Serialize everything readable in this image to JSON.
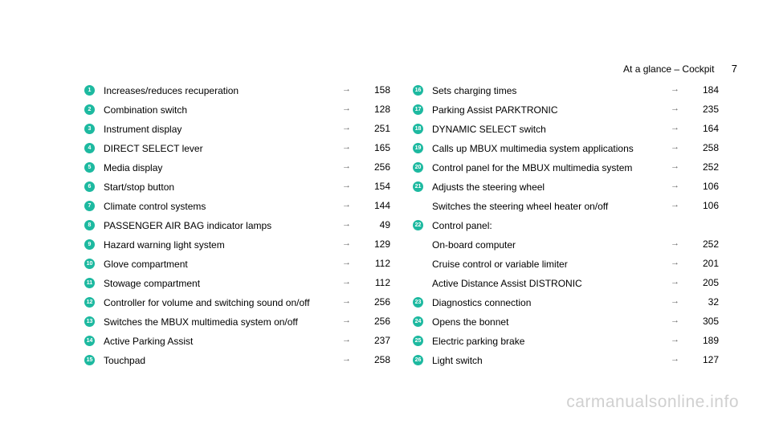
{
  "header": {
    "title": "At a glance – Cockpit",
    "page": "7"
  },
  "watermark": "carmanualsonline.info",
  "accent_color": "#1db9a0",
  "left_items": [
    {
      "n": "1",
      "label": "Increases/reduces recuperation",
      "page": "158"
    },
    {
      "n": "2",
      "label": "Combination switch",
      "page": "128"
    },
    {
      "n": "3",
      "label": "Instrument display",
      "page": "251"
    },
    {
      "n": "4",
      "label": "DIRECT SELECT lever",
      "page": "165"
    },
    {
      "n": "5",
      "label": "Media display",
      "page": "256"
    },
    {
      "n": "6",
      "label": "Start/stop button",
      "page": "154"
    },
    {
      "n": "7",
      "label": "Climate control systems",
      "page": "144"
    },
    {
      "n": "8",
      "label": "PASSENGER AIR BAG indicator lamps",
      "page": "49"
    },
    {
      "n": "9",
      "label": "Hazard warning light system",
      "page": "129"
    },
    {
      "n": "10",
      "label": "Glove compartment",
      "page": "112"
    },
    {
      "n": "11",
      "label": "Stowage compartment",
      "page": "112"
    },
    {
      "n": "12",
      "label": "Controller for volume and switching sound on/off",
      "page": "256"
    },
    {
      "n": "13",
      "label": "Switches the MBUX multimedia system on/off",
      "page": "256"
    },
    {
      "n": "14",
      "label": "Active Parking Assist",
      "page": "237"
    },
    {
      "n": "15",
      "label": "Touchpad",
      "page": "258"
    }
  ],
  "right_items": [
    {
      "n": "16",
      "label": "Sets charging times",
      "page": "184"
    },
    {
      "n": "17",
      "label": "Parking Assist PARKTRONIC",
      "page": "235"
    },
    {
      "n": "18",
      "label": "DYNAMIC SELECT switch",
      "page": "164"
    },
    {
      "n": "19",
      "label": "Calls up MBUX multimedia system applications",
      "page": "258"
    },
    {
      "n": "20",
      "label": "Control panel for the MBUX multimedia system",
      "page": "252"
    },
    {
      "n": "21",
      "label": "Adjusts the steering wheel",
      "page": "106"
    },
    {
      "n": "",
      "label": "Switches the steering wheel heater on/off",
      "page": "106"
    },
    {
      "n": "22",
      "label": "Control panel:",
      "page": ""
    },
    {
      "n": "",
      "label": "On-board computer",
      "page": "252"
    },
    {
      "n": "",
      "label": "Cruise control or variable limiter",
      "page": "201"
    },
    {
      "n": "",
      "label": "Active Distance Assist DISTRONIC",
      "page": "205"
    },
    {
      "n": "23",
      "label": "Diagnostics connection",
      "page": "32"
    },
    {
      "n": "24",
      "label": "Opens the bonnet",
      "page": "305"
    },
    {
      "n": "25",
      "label": "Electric parking brake",
      "page": "189"
    },
    {
      "n": "26",
      "label": "Light switch",
      "page": "127"
    }
  ]
}
